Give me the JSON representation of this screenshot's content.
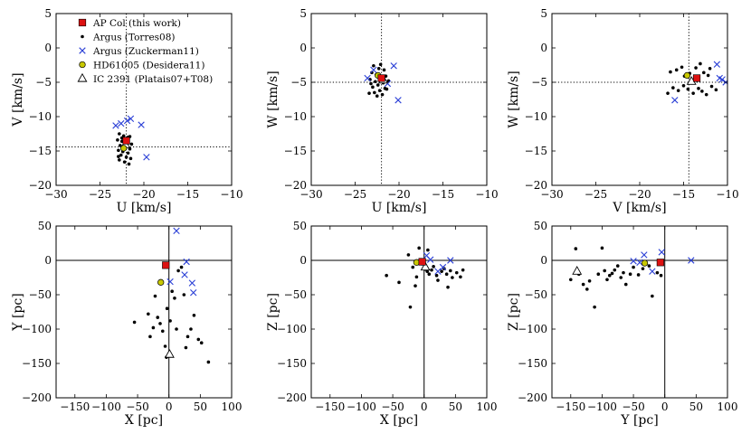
{
  "legend": [
    {
      "marker": "square",
      "label": "AP Col (this work)"
    },
    {
      "marker": "dot",
      "label": "Argus (Torres08)"
    },
    {
      "marker": "cross",
      "label": "Argus (Zuckerman11)"
    },
    {
      "marker": "circle",
      "label": "HD61005 (Desidera11)"
    },
    {
      "marker": "triangle",
      "label": "IC 2391 (Platais07+T08)"
    }
  ],
  "colors": {
    "square": "#dd1111",
    "cross": "#2a3fd6",
    "circle": "#c8c800",
    "dot": "#000000",
    "guide": "#000000"
  },
  "chart_data": [
    {
      "type": "scatter",
      "id": "uv",
      "xlabel": "U [km/s]",
      "ylabel": "V [km/s]",
      "xlim": [
        -30,
        -10
      ],
      "ylim": [
        -20,
        5
      ],
      "xticks": [
        -30,
        -25,
        -20,
        -15,
        -10
      ],
      "yticks": [
        -20,
        -15,
        -10,
        -5,
        0,
        5
      ],
      "guide_style": "dotted",
      "guide_x": -22.0,
      "guide_y": -14.4,
      "series": {
        "dots": [
          [
            -22.8,
            -12.5
          ],
          [
            -22.3,
            -12.8
          ],
          [
            -21.8,
            -13.0
          ],
          [
            -23.0,
            -13.4
          ],
          [
            -22.5,
            -13.6
          ],
          [
            -21.9,
            -13.9
          ],
          [
            -22.7,
            -14.2
          ],
          [
            -22.1,
            -14.5
          ],
          [
            -21.6,
            -14.7
          ],
          [
            -22.9,
            -14.9
          ],
          [
            -22.4,
            -15.1
          ],
          [
            -21.8,
            -15.3
          ],
          [
            -22.6,
            -15.6
          ],
          [
            -22.0,
            -15.9
          ],
          [
            -21.5,
            -16.1
          ],
          [
            -22.8,
            -16.3
          ],
          [
            -22.2,
            -16.6
          ],
          [
            -21.7,
            -16.9
          ],
          [
            -22.5,
            -13.1
          ],
          [
            -21.4,
            -14.0
          ],
          [
            -22.9,
            -15.8
          ],
          [
            -21.6,
            -12.9
          ]
        ],
        "crosses": [
          [
            -23.2,
            -11.3
          ],
          [
            -22.6,
            -11.0
          ],
          [
            -21.9,
            -10.6
          ],
          [
            -21.5,
            -10.3
          ],
          [
            -20.3,
            -11.2
          ],
          [
            -19.7,
            -15.9
          ]
        ],
        "squares": [
          [
            -22.0,
            -13.5
          ]
        ],
        "circles": [
          [
            -22.3,
            -14.6
          ]
        ],
        "triangles": [
          [
            -22.1,
            -14.1
          ]
        ]
      }
    },
    {
      "type": "scatter",
      "id": "uw",
      "xlabel": "U [km/s]",
      "ylabel": "W [km/s]",
      "xlim": [
        -30,
        -10
      ],
      "ylim": [
        -20,
        5
      ],
      "xticks": [
        -30,
        -25,
        -20,
        -15,
        -10
      ],
      "yticks": [
        -20,
        -15,
        -10,
        -5,
        0,
        5
      ],
      "guide_style": "dotted",
      "guide_x": -22.0,
      "guide_y": -5.0,
      "series": {
        "dots": [
          [
            -22.9,
            -2.6
          ],
          [
            -22.3,
            -3.0
          ],
          [
            -21.7,
            -3.2
          ],
          [
            -23.1,
            -3.6
          ],
          [
            -22.6,
            -3.9
          ],
          [
            -21.5,
            -4.1
          ],
          [
            -22.0,
            -4.4
          ],
          [
            -23.3,
            -4.6
          ],
          [
            -22.7,
            -4.9
          ],
          [
            -21.8,
            -5.1
          ],
          [
            -22.4,
            -5.4
          ],
          [
            -23.0,
            -5.7
          ],
          [
            -21.6,
            -5.9
          ],
          [
            -22.2,
            -6.2
          ],
          [
            -22.8,
            -6.5
          ],
          [
            -21.9,
            -6.8
          ],
          [
            -22.5,
            -7.0
          ],
          [
            -21.4,
            -6.0
          ],
          [
            -23.2,
            -5.2
          ],
          [
            -22.1,
            -2.4
          ],
          [
            -21.2,
            -4.8
          ],
          [
            -23.4,
            -6.6
          ]
        ],
        "crosses": [
          [
            -23.6,
            -4.4
          ],
          [
            -22.9,
            -3.2
          ],
          [
            -21.3,
            -5.2
          ],
          [
            -20.6,
            -2.6
          ],
          [
            -20.1,
            -7.6
          ]
        ],
        "squares": [
          [
            -22.0,
            -4.4
          ]
        ],
        "circles": [
          [
            -22.4,
            -4.0
          ]
        ],
        "triangles": [
          [
            -21.8,
            -4.7
          ]
        ]
      }
    },
    {
      "type": "scatter",
      "id": "vw",
      "xlabel": "V [km/s]",
      "ylabel": "W [km/s]",
      "xlim": [
        -30,
        -10
      ],
      "ylim": [
        -20,
        5
      ],
      "xticks": [
        -30,
        -25,
        -20,
        -15,
        -10
      ],
      "yticks": [
        -20,
        -15,
        -10,
        -5,
        0,
        5
      ],
      "guide_style": "dotted",
      "guide_x": -14.4,
      "guide_y": -5.0,
      "series": {
        "dots": [
          [
            -16.5,
            -3.5
          ],
          [
            -15.8,
            -3.2
          ],
          [
            -15.2,
            -2.8
          ],
          [
            -14.9,
            -4.1
          ],
          [
            -14.3,
            -3.7
          ],
          [
            -13.6,
            -2.9
          ],
          [
            -13.1,
            -2.3
          ],
          [
            -12.7,
            -3.6
          ],
          [
            -12.2,
            -4.0
          ],
          [
            -16.2,
            -5.8
          ],
          [
            -15.6,
            -6.2
          ],
          [
            -15.0,
            -5.5
          ],
          [
            -14.5,
            -6.0
          ],
          [
            -13.9,
            -6.6
          ],
          [
            -13.3,
            -5.9
          ],
          [
            -12.9,
            -6.3
          ],
          [
            -12.4,
            -6.8
          ],
          [
            -11.8,
            -5.6
          ],
          [
            -11.3,
            -6.1
          ],
          [
            -16.8,
            -6.6
          ],
          [
            -13.7,
            -4.5
          ],
          [
            -12.0,
            -3.0
          ]
        ],
        "crosses": [
          [
            -16.0,
            -7.6
          ],
          [
            -11.2,
            -2.4
          ],
          [
            -10.9,
            -4.4
          ],
          [
            -10.6,
            -4.6
          ],
          [
            -10.2,
            -5.0
          ]
        ],
        "squares": [
          [
            -13.5,
            -4.4
          ]
        ],
        "circles": [
          [
            -14.6,
            -4.0
          ]
        ],
        "triangles": [
          [
            -14.1,
            -4.9
          ]
        ]
      }
    },
    {
      "type": "scatter",
      "id": "xy",
      "xlabel": "X [pc]",
      "ylabel": "Y [pc]",
      "xlim": [
        -180,
        100
      ],
      "ylim": [
        -200,
        50
      ],
      "xticks": [
        -150,
        -100,
        -50,
        0,
        50,
        100
      ],
      "yticks": [
        -200,
        -150,
        -100,
        -50,
        0,
        50
      ],
      "guide_style": "solid",
      "guide_x": 0,
      "guide_y": 0,
      "series": {
        "dots": [
          [
            -55,
            -90
          ],
          [
            -33,
            -78
          ],
          [
            -30,
            -111
          ],
          [
            -25,
            -98
          ],
          [
            -22,
            -52
          ],
          [
            -18,
            -83
          ],
          [
            -14,
            -92
          ],
          [
            -10,
            -103
          ],
          [
            -6,
            -125
          ],
          [
            -4,
            -141
          ],
          [
            2,
            -88
          ],
          [
            5,
            -45
          ],
          [
            9,
            -55
          ],
          [
            12,
            -100
          ],
          [
            15,
            -15
          ],
          [
            20,
            -10
          ],
          [
            24,
            -50
          ],
          [
            27,
            -127
          ],
          [
            30,
            -111
          ],
          [
            35,
            -100
          ],
          [
            40,
            -80
          ],
          [
            47,
            -115
          ],
          [
            52,
            -120
          ],
          [
            63,
            -148
          ],
          [
            4,
            -139
          ],
          [
            -3,
            -70
          ]
        ],
        "crosses": [
          [
            12,
            43
          ],
          [
            25,
            -21
          ],
          [
            28,
            -2
          ],
          [
            37,
            -33
          ],
          [
            39,
            -47
          ],
          [
            2,
            -31
          ]
        ],
        "squares": [
          [
            -5,
            -7
          ]
        ],
        "circles": [
          [
            -13,
            -32
          ]
        ],
        "triangles": [
          [
            1,
            -137
          ]
        ]
      }
    },
    {
      "type": "scatter",
      "id": "xz",
      "xlabel": "X [pc]",
      "ylabel": "Z [pc]",
      "xlim": [
        -180,
        100
      ],
      "ylim": [
        -200,
        50
      ],
      "xticks": [
        -150,
        -100,
        -50,
        0,
        50,
        100
      ],
      "yticks": [
        -200,
        -150,
        -100,
        -50,
        0,
        50
      ],
      "guide_style": "solid",
      "guide_x": 0,
      "guide_y": 0,
      "series": {
        "dots": [
          [
            -60,
            -22
          ],
          [
            -40,
            -32
          ],
          [
            -25,
            8
          ],
          [
            -22,
            -68
          ],
          [
            -18,
            -10
          ],
          [
            -12,
            -24
          ],
          [
            -8,
            18
          ],
          [
            -3,
            -5
          ],
          [
            2,
            -13
          ],
          [
            5,
            -16
          ],
          [
            8,
            -20
          ],
          [
            12,
            -14
          ],
          [
            15,
            -9
          ],
          [
            20,
            -22
          ],
          [
            22,
            -29
          ],
          [
            28,
            -16
          ],
          [
            32,
            -12
          ],
          [
            36,
            -20
          ],
          [
            38,
            -39
          ],
          [
            42,
            -15
          ],
          [
            45,
            -25
          ],
          [
            52,
            -18
          ],
          [
            58,
            -24
          ],
          [
            62,
            -14
          ],
          [
            6,
            15
          ],
          [
            -14,
            -37
          ]
        ],
        "crosses": [
          [
            -8,
            -3
          ],
          [
            4,
            7
          ],
          [
            10,
            1
          ],
          [
            22,
            -16
          ],
          [
            30,
            -10
          ],
          [
            42,
            0
          ]
        ],
        "squares": [
          [
            -3,
            -2
          ]
        ],
        "circles": [
          [
            -12,
            -3
          ]
        ],
        "triangles": [
          [
            2,
            -10
          ]
        ]
      }
    },
    {
      "type": "scatter",
      "id": "yz",
      "xlabel": "Y [pc]",
      "ylabel": "Z [pc]",
      "xlim": [
        -180,
        100
      ],
      "ylim": [
        -200,
        50
      ],
      "xticks": [
        -150,
        -100,
        -50,
        0,
        50,
        100
      ],
      "yticks": [
        -200,
        -150,
        -100,
        -50,
        0,
        50
      ],
      "guide_style": "solid",
      "guide_x": 0,
      "guide_y": 0,
      "series": {
        "dots": [
          [
            -150,
            -28
          ],
          [
            -142,
            17
          ],
          [
            -137,
            -20
          ],
          [
            -130,
            -35
          ],
          [
            -124,
            -42
          ],
          [
            -120,
            -30
          ],
          [
            -112,
            -68
          ],
          [
            -106,
            -20
          ],
          [
            -100,
            18
          ],
          [
            -96,
            -15
          ],
          [
            -92,
            -28
          ],
          [
            -88,
            -22
          ],
          [
            -84,
            -19
          ],
          [
            -80,
            -14
          ],
          [
            -75,
            -8
          ],
          [
            -70,
            -25
          ],
          [
            -66,
            -18
          ],
          [
            -62,
            -35
          ],
          [
            -55,
            -20
          ],
          [
            -50,
            -10
          ],
          [
            -42,
            -21
          ],
          [
            -35,
            -12
          ],
          [
            -25,
            -8
          ],
          [
            -20,
            -52
          ],
          [
            -12,
            -18
          ],
          [
            -6,
            -22
          ]
        ],
        "crosses": [
          [
            -50,
            -1
          ],
          [
            -40,
            -3
          ],
          [
            -33,
            8
          ],
          [
            -20,
            -16
          ],
          [
            -5,
            12
          ],
          [
            42,
            0
          ]
        ],
        "squares": [
          [
            -7,
            -3
          ]
        ],
        "circles": [
          [
            -32,
            -4
          ]
        ],
        "triangles": [
          [
            -140,
            -16
          ]
        ]
      }
    }
  ]
}
